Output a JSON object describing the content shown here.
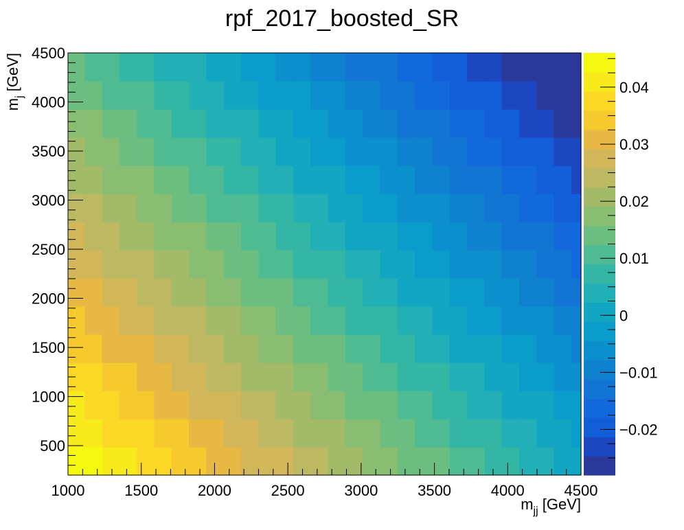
{
  "chart_data": {
    "type": "heatmap",
    "title": "rpf_2017_boosted_SR",
    "xlabel": {
      "base": "m",
      "sub": "jj",
      "unit": " [GeV]"
    },
    "ylabel": {
      "base": "m",
      "sub": "j",
      "unit": " [GeV]"
    },
    "xlim": [
      1000,
      4500
    ],
    "ylim": [
      200,
      4500
    ],
    "zlim": [
      -0.028,
      0.046
    ],
    "x_ticks": [
      1000,
      1500,
      2000,
      2500,
      3000,
      3500,
      4000,
      4500
    ],
    "y_ticks": [
      500,
      1000,
      1500,
      2000,
      2500,
      3000,
      3500,
      4000,
      4500
    ],
    "z_ticks": [
      -0.02,
      -0.01,
      0,
      0.01,
      0.02,
      0.03,
      0.04
    ],
    "z_tick_labels": [
      "−0.02",
      "−0.01",
      "0",
      "0.01",
      "0.02",
      "0.03",
      "0.04"
    ],
    "x_edges": [
      1000,
      1114,
      1233,
      1351,
      1470,
      1588,
      1707,
      1825,
      1944,
      2063,
      2181,
      2300,
      2418,
      2537,
      2655,
      2774,
      2892,
      3011,
      3130,
      3248,
      3367,
      3485,
      3604,
      3722,
      3841,
      3959,
      4078,
      4197,
      4315,
      4434,
      4500
    ],
    "y_edges": [
      200,
      486,
      773,
      1060,
      1346,
      1633,
      1920,
      2206,
      2493,
      2780,
      3066,
      3353,
      3640,
      3926,
      4213,
      4500
    ],
    "z_model": {
      "z0": 0.046,
      "dz_dx": -1.27e-05,
      "dz_dy": -7.8e-06,
      "note_bins": "each cell value = z0 + dz_dx*(x_center-1000) + dz_dy*(y_center-200)"
    },
    "palette_levels": 20,
    "palette": [
      "#2b3a9a",
      "#1c47c0",
      "#125ed8",
      "#1269db",
      "#1275d4",
      "#0f82cf",
      "#0b8fcd",
      "#0a9ccb",
      "#13a6c3",
      "#22afb6",
      "#34b6a5",
      "#4fbb92",
      "#6bbd80",
      "#88bd72",
      "#a3bb68",
      "#bdb862",
      "#d2b65a",
      "#e7b843",
      "#f6c92e",
      "#fbd826",
      "#f7eb1c",
      "#f5f90f"
    ]
  }
}
